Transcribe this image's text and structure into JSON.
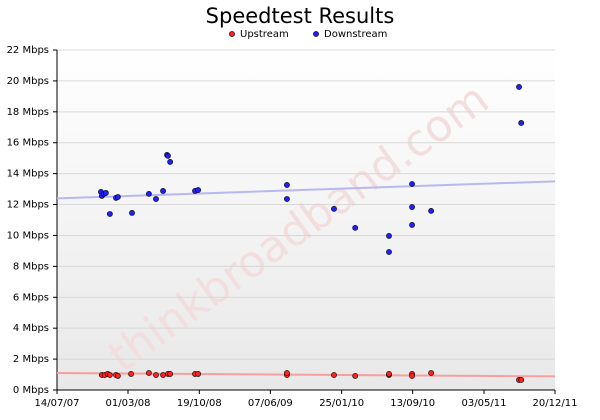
{
  "chart_data": {
    "type": "scatter",
    "title": "Speedtest Results",
    "watermark": "thinkbroadband.com",
    "xlim": [
      "2007-07-14",
      "2011-12-20"
    ],
    "xticks": [
      {
        "value": "2007-07-14",
        "label": "14/07/07"
      },
      {
        "value": "2008-03-01",
        "label": "01/03/08"
      },
      {
        "value": "2008-10-19",
        "label": "19/10/08"
      },
      {
        "value": "2009-06-07",
        "label": "07/06/09"
      },
      {
        "value": "2010-01-25",
        "label": "25/01/10"
      },
      {
        "value": "2010-09-13",
        "label": "13/09/10"
      },
      {
        "value": "2011-05-03",
        "label": "03/05/11"
      },
      {
        "value": "2011-12-20",
        "label": "20/12/11"
      }
    ],
    "ylim": [
      0,
      22
    ],
    "yticks": [
      {
        "value": 0,
        "label": "0 Mbps"
      },
      {
        "value": 2,
        "label": "2 Mbps"
      },
      {
        "value": 4,
        "label": "4 Mbps"
      },
      {
        "value": 6,
        "label": "6 Mbps"
      },
      {
        "value": 8,
        "label": "8 Mbps"
      },
      {
        "value": 10,
        "label": "10 Mbps"
      },
      {
        "value": 12,
        "label": "12 Mbps"
      },
      {
        "value": 14,
        "label": "14 Mbps"
      },
      {
        "value": 16,
        "label": "16 Mbps"
      },
      {
        "value": 18,
        "label": "18 Mbps"
      },
      {
        "value": 20,
        "label": "20 Mbps"
      },
      {
        "value": 22,
        "label": "22 Mbps"
      }
    ],
    "grid": true,
    "series": [
      {
        "name": "Upstream",
        "color": "#ff2020",
        "trend_color": "#f4a0a0",
        "trend": [
          1.1,
          0.88
        ],
        "x": [
          "2007-12-07",
          "2007-12-16",
          "2007-12-26",
          "2008-01-02",
          "2008-01-22",
          "2008-01-28",
          "2008-03-11",
          "2008-05-08",
          "2008-05-31",
          "2008-06-23",
          "2008-07-09",
          "2008-07-16",
          "2008-10-05",
          "2008-10-15",
          "2009-07-31",
          "2009-07-31",
          "2009-12-31",
          "2010-03-10",
          "2010-06-28",
          "2010-06-28",
          "2010-09-11",
          "2010-09-11",
          "2010-11-12",
          "2011-08-25",
          "2011-09-01"
        ],
        "values": [
          0.97,
          0.97,
          1.04,
          0.97,
          0.97,
          0.91,
          1.04,
          1.1,
          0.97,
          0.97,
          1.04,
          1.04,
          1.04,
          1.04,
          0.97,
          1.1,
          0.97,
          0.91,
          0.97,
          1.04,
          1.04,
          0.91,
          1.1,
          0.65,
          0.65
        ]
      },
      {
        "name": "Downstream",
        "color": "#2020ff",
        "trend_color": "#b8b8f0",
        "trend": [
          12.4,
          13.5
        ],
        "x": [
          "2007-12-04",
          "2007-12-07",
          "2007-12-14",
          "2007-12-20",
          "2008-01-02",
          "2008-01-22",
          "2008-01-28",
          "2008-03-14",
          "2008-05-08",
          "2008-05-31",
          "2008-06-23",
          "2008-07-06",
          "2008-07-09",
          "2008-07-16",
          "2008-10-05",
          "2008-10-15",
          "2009-07-31",
          "2009-07-31",
          "2009-12-31",
          "2010-03-10",
          "2010-06-28",
          "2010-06-28",
          "2010-09-11",
          "2010-09-11",
          "2010-09-11",
          "2010-11-12",
          "2011-08-25",
          "2011-09-01"
        ],
        "values": [
          12.82,
          12.56,
          12.69,
          12.75,
          11.39,
          12.43,
          12.49,
          11.46,
          12.69,
          12.36,
          12.88,
          15.21,
          15.15,
          14.76,
          12.88,
          12.94,
          13.27,
          12.36,
          11.72,
          10.49,
          9.97,
          8.93,
          13.33,
          11.84,
          10.68,
          11.59,
          19.61,
          17.28
        ]
      }
    ]
  }
}
